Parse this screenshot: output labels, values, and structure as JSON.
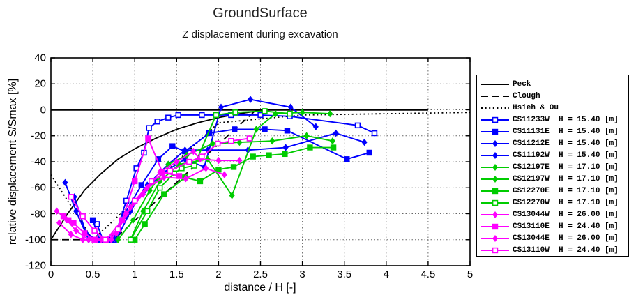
{
  "chart_data": {
    "type": "line",
    "title": "GroundSurface",
    "subtitle": "Z displacement during excavation",
    "xlabel": "distance / H [-]",
    "ylabel": "relative displacement S/Smax [%]",
    "xlim": [
      0,
      5
    ],
    "ylim": [
      -120,
      40
    ],
    "xticks": [
      0,
      0.5,
      1,
      1.5,
      2,
      2.5,
      3,
      3.5,
      4,
      4.5,
      5
    ],
    "yticks": [
      40,
      20,
      0,
      -20,
      -40,
      -60,
      -80,
      -100,
      -120
    ],
    "grid": true,
    "legend_position": "outside-right",
    "zero_line": {
      "y": 0,
      "x_start": 0,
      "x_end": 4.5
    },
    "reference_lines": [
      {
        "name": "Peck",
        "style": "solid",
        "color": "#000000",
        "points": [
          [
            0,
            -100
          ],
          [
            0.2,
            -80
          ],
          [
            0.4,
            -62
          ],
          [
            0.6,
            -49
          ],
          [
            0.8,
            -38
          ],
          [
            1.0,
            -30
          ],
          [
            1.25,
            -22
          ],
          [
            1.5,
            -15
          ],
          [
            1.75,
            -10
          ],
          [
            2.0,
            -6
          ],
          [
            2.25,
            -3
          ],
          [
            2.55,
            0
          ]
        ]
      },
      {
        "name": "Clough",
        "style": "dashed",
        "color": "#000000",
        "points": [
          [
            0,
            -100
          ],
          [
            0.75,
            -100
          ],
          [
            2.45,
            0
          ]
        ]
      },
      {
        "name": "Hsieh & Ou",
        "style": "dotted",
        "color": "#000000",
        "points": [
          [
            0,
            -50
          ],
          [
            0.5,
            -100
          ],
          [
            2,
            -10
          ],
          [
            3,
            -4
          ],
          [
            5,
            -2
          ]
        ]
      }
    ],
    "series": [
      {
        "name": "CS11233W",
        "h_label": "H = 15.40 [m]",
        "color": "#0000FF",
        "marker": "open-square",
        "points": [
          [
            0.55,
            -88
          ],
          [
            0.62,
            -100
          ],
          [
            0.75,
            -100
          ],
          [
            0.9,
            -70
          ],
          [
            1.02,
            -45
          ],
          [
            1.11,
            -33
          ],
          [
            1.17,
            -14
          ],
          [
            1.27,
            -9
          ],
          [
            1.4,
            -6
          ],
          [
            1.52,
            -4
          ],
          [
            1.8,
            -4
          ],
          [
            2.15,
            -4
          ],
          [
            2.5,
            -4
          ],
          [
            2.85,
            -5
          ],
          [
            3.66,
            -12
          ],
          [
            3.86,
            -18
          ]
        ]
      },
      {
        "name": "CS11131E",
        "h_label": "H = 15.40 [m]",
        "color": "#0000FF",
        "marker": "filled-square",
        "points": [
          [
            0.5,
            -85
          ],
          [
            0.58,
            -100
          ],
          [
            0.72,
            -100
          ],
          [
            0.88,
            -80
          ],
          [
            1.08,
            -58
          ],
          [
            1.28,
            -38
          ],
          [
            1.45,
            -28
          ],
          [
            1.6,
            -32
          ],
          [
            1.89,
            -18
          ],
          [
            2.19,
            -15
          ],
          [
            2.55,
            -15
          ],
          [
            2.82,
            -16
          ],
          [
            3.53,
            -38
          ],
          [
            3.8,
            -33
          ]
        ]
      },
      {
        "name": "CS11212E",
        "h_label": "H = 15.40 [m]",
        "color": "#0000FF",
        "marker": "diamond",
        "points": [
          [
            0.17,
            -56
          ],
          [
            0.3,
            -78
          ],
          [
            0.45,
            -100
          ],
          [
            0.62,
            -100
          ],
          [
            0.78,
            -100
          ],
          [
            0.95,
            -78
          ],
          [
            1.15,
            -58
          ],
          [
            1.4,
            -42
          ],
          [
            1.6,
            -31
          ],
          [
            1.87,
            -31
          ],
          [
            2.35,
            -31
          ],
          [
            2.8,
            -29
          ],
          [
            3.4,
            -18
          ],
          [
            3.74,
            -25
          ]
        ]
      },
      {
        "name": "CS11192W",
        "h_label": "H = 15.40 [m]",
        "color": "#0000FF",
        "marker": "diamond",
        "points": [
          [
            0.28,
            -67
          ],
          [
            0.42,
            -95
          ],
          [
            0.55,
            -100
          ],
          [
            0.7,
            -100
          ],
          [
            0.9,
            -82
          ],
          [
            1.12,
            -62
          ],
          [
            1.35,
            -48
          ],
          [
            1.6,
            -38
          ],
          [
            1.83,
            -44
          ],
          [
            2.03,
            2
          ],
          [
            2.38,
            8
          ],
          [
            2.86,
            2
          ],
          [
            3.16,
            -13
          ]
        ]
      },
      {
        "name": "CS12197E",
        "h_label": "H = 17.10 [m]",
        "color": "#00CC00",
        "marker": "diamond",
        "points": [
          [
            0.95,
            -100
          ],
          [
            1.1,
            -78
          ],
          [
            1.3,
            -55
          ],
          [
            1.53,
            -42
          ],
          [
            1.87,
            -38
          ],
          [
            2.16,
            -66
          ],
          [
            2.45,
            -15
          ],
          [
            2.68,
            -3
          ],
          [
            3.0,
            -2
          ],
          [
            3.33,
            -3
          ]
        ]
      },
      {
        "name": "CS12197W",
        "h_label": "H = 17.10 [m]",
        "color": "#00CC00",
        "marker": "diamond",
        "points": [
          [
            0.8,
            -100
          ],
          [
            0.98,
            -85
          ],
          [
            1.18,
            -62
          ],
          [
            1.4,
            -42
          ],
          [
            1.62,
            -35
          ],
          [
            1.93,
            -26
          ],
          [
            2.25,
            -25
          ],
          [
            2.64,
            -24
          ],
          [
            3.05,
            -20
          ],
          [
            3.36,
            -24
          ]
        ]
      },
      {
        "name": "CS12270E",
        "h_label": "H = 17.10 [m]",
        "color": "#00CC00",
        "marker": "filled-square",
        "points": [
          [
            1.0,
            -100
          ],
          [
            1.12,
            -88
          ],
          [
            1.35,
            -65
          ],
          [
            1.6,
            -52
          ],
          [
            1.78,
            -55
          ],
          [
            2.0,
            -46
          ],
          [
            2.18,
            -44
          ],
          [
            2.41,
            -36
          ],
          [
            2.6,
            -35
          ],
          [
            2.79,
            -34
          ],
          [
            3.09,
            -29
          ],
          [
            3.37,
            -29
          ]
        ]
      },
      {
        "name": "CS12270W",
        "h_label": "H = 17.10 [m]",
        "color": "#00CC00",
        "marker": "open-square",
        "points": [
          [
            0.95,
            -100
          ],
          [
            1.15,
            -78
          ],
          [
            1.3,
            -60
          ],
          [
            1.47,
            -49
          ],
          [
            1.56,
            -45
          ],
          [
            1.71,
            -43
          ],
          [
            1.97,
            -4
          ],
          [
            2.2,
            -2
          ],
          [
            2.55,
            -1
          ],
          [
            2.85,
            -3
          ]
        ]
      },
      {
        "name": "CS13044W",
        "h_label": "H = 26.00 [m]",
        "color": "#FF00FF",
        "marker": "diamond",
        "points": [
          [
            0.07,
            -78
          ],
          [
            0.18,
            -84
          ],
          [
            0.3,
            -93
          ],
          [
            0.45,
            -100
          ],
          [
            0.6,
            -100
          ],
          [
            0.78,
            -95
          ],
          [
            0.95,
            -75
          ],
          [
            1.15,
            -60
          ],
          [
            1.35,
            -52
          ],
          [
            1.61,
            -53
          ],
          [
            1.85,
            -45
          ],
          [
            2.07,
            -50
          ]
        ]
      },
      {
        "name": "CS13110E",
        "h_label": "H = 24.40 [m]",
        "color": "#FF00FF",
        "marker": "filled-square",
        "points": [
          [
            0.15,
            -82
          ],
          [
            0.21,
            -85
          ],
          [
            0.27,
            -87
          ],
          [
            0.4,
            -95
          ],
          [
            0.52,
            -100
          ],
          [
            0.66,
            -100
          ],
          [
            0.85,
            -85
          ],
          [
            1.0,
            -55
          ],
          [
            1.16,
            -22
          ],
          [
            1.33,
            -48
          ],
          [
            1.53,
            -51
          ]
        ]
      },
      {
        "name": "CS13044E",
        "h_label": "H = 26.00 [m]",
        "color": "#FF00FF",
        "marker": "diamond",
        "points": [
          [
            0.1,
            -87
          ],
          [
            0.24,
            -96
          ],
          [
            0.38,
            -100
          ],
          [
            0.55,
            -100
          ],
          [
            0.72,
            -100
          ],
          [
            0.9,
            -80
          ],
          [
            1.1,
            -65
          ],
          [
            1.3,
            -48
          ],
          [
            1.5,
            -40
          ],
          [
            1.7,
            -32
          ],
          [
            1.78,
            -38
          ],
          [
            2.0,
            -39
          ],
          [
            2.25,
            -39
          ]
        ]
      },
      {
        "name": "CS13110W",
        "h_label": "H = 24.40 [m]",
        "color": "#FF00FF",
        "marker": "open-square",
        "points": [
          [
            0.24,
            -67
          ],
          [
            0.38,
            -82
          ],
          [
            0.52,
            -93
          ],
          [
            0.65,
            -100
          ],
          [
            0.8,
            -92
          ],
          [
            1.0,
            -70
          ],
          [
            1.2,
            -55
          ],
          [
            1.42,
            -47
          ],
          [
            1.65,
            -40
          ],
          [
            1.8,
            -36
          ],
          [
            1.99,
            -26
          ],
          [
            2.15,
            -24
          ],
          [
            2.37,
            -22
          ]
        ]
      }
    ]
  },
  "layout_colors": {
    "grid": "#666666",
    "axis": "#000000",
    "background": "#FFFFFF"
  }
}
